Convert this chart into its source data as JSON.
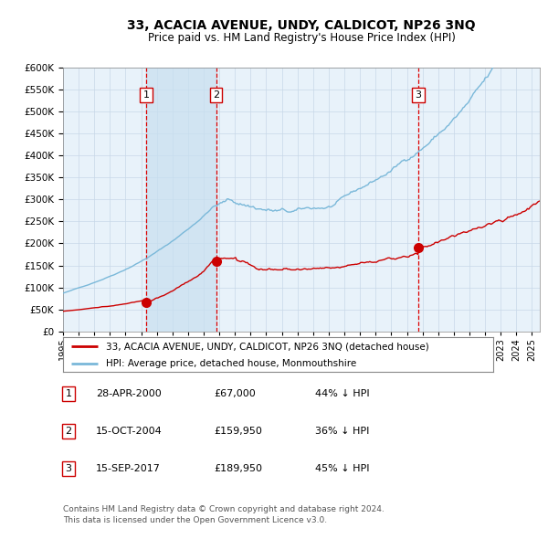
{
  "title": "33, ACACIA AVENUE, UNDY, CALDICOT, NP26 3NQ",
  "subtitle": "Price paid vs. HM Land Registry's House Price Index (HPI)",
  "hpi_color": "#7ab8d9",
  "price_color": "#cc0000",
  "sale1_date": 2000.32,
  "sale1_price": 67000,
  "sale2_date": 2004.79,
  "sale2_price": 159950,
  "sale3_date": 2017.71,
  "sale3_price": 189950,
  "legend_line1": "33, ACACIA AVENUE, UNDY, CALDICOT, NP26 3NQ (detached house)",
  "legend_line2": "HPI: Average price, detached house, Monmouthshire",
  "table_rows": [
    {
      "num": "1",
      "date": "28-APR-2000",
      "price": "£67,000",
      "pct": "44% ↓ HPI"
    },
    {
      "num": "2",
      "date": "15-OCT-2004",
      "price": "£159,950",
      "pct": "36% ↓ HPI"
    },
    {
      "num": "3",
      "date": "15-SEP-2017",
      "price": "£189,950",
      "pct": "45% ↓ HPI"
    }
  ],
  "footnote": "Contains HM Land Registry data © Crown copyright and database right 2024.\nThis data is licensed under the Open Government Licence v3.0.",
  "ylim": [
    0,
    600000
  ],
  "xlim_start": 1995.0,
  "xlim_end": 2025.5,
  "background_color": "#ffffff",
  "plot_bg_color": "#e8f2fa",
  "grid_color": "#c8d8e8",
  "shade_color": "#c8dff0"
}
